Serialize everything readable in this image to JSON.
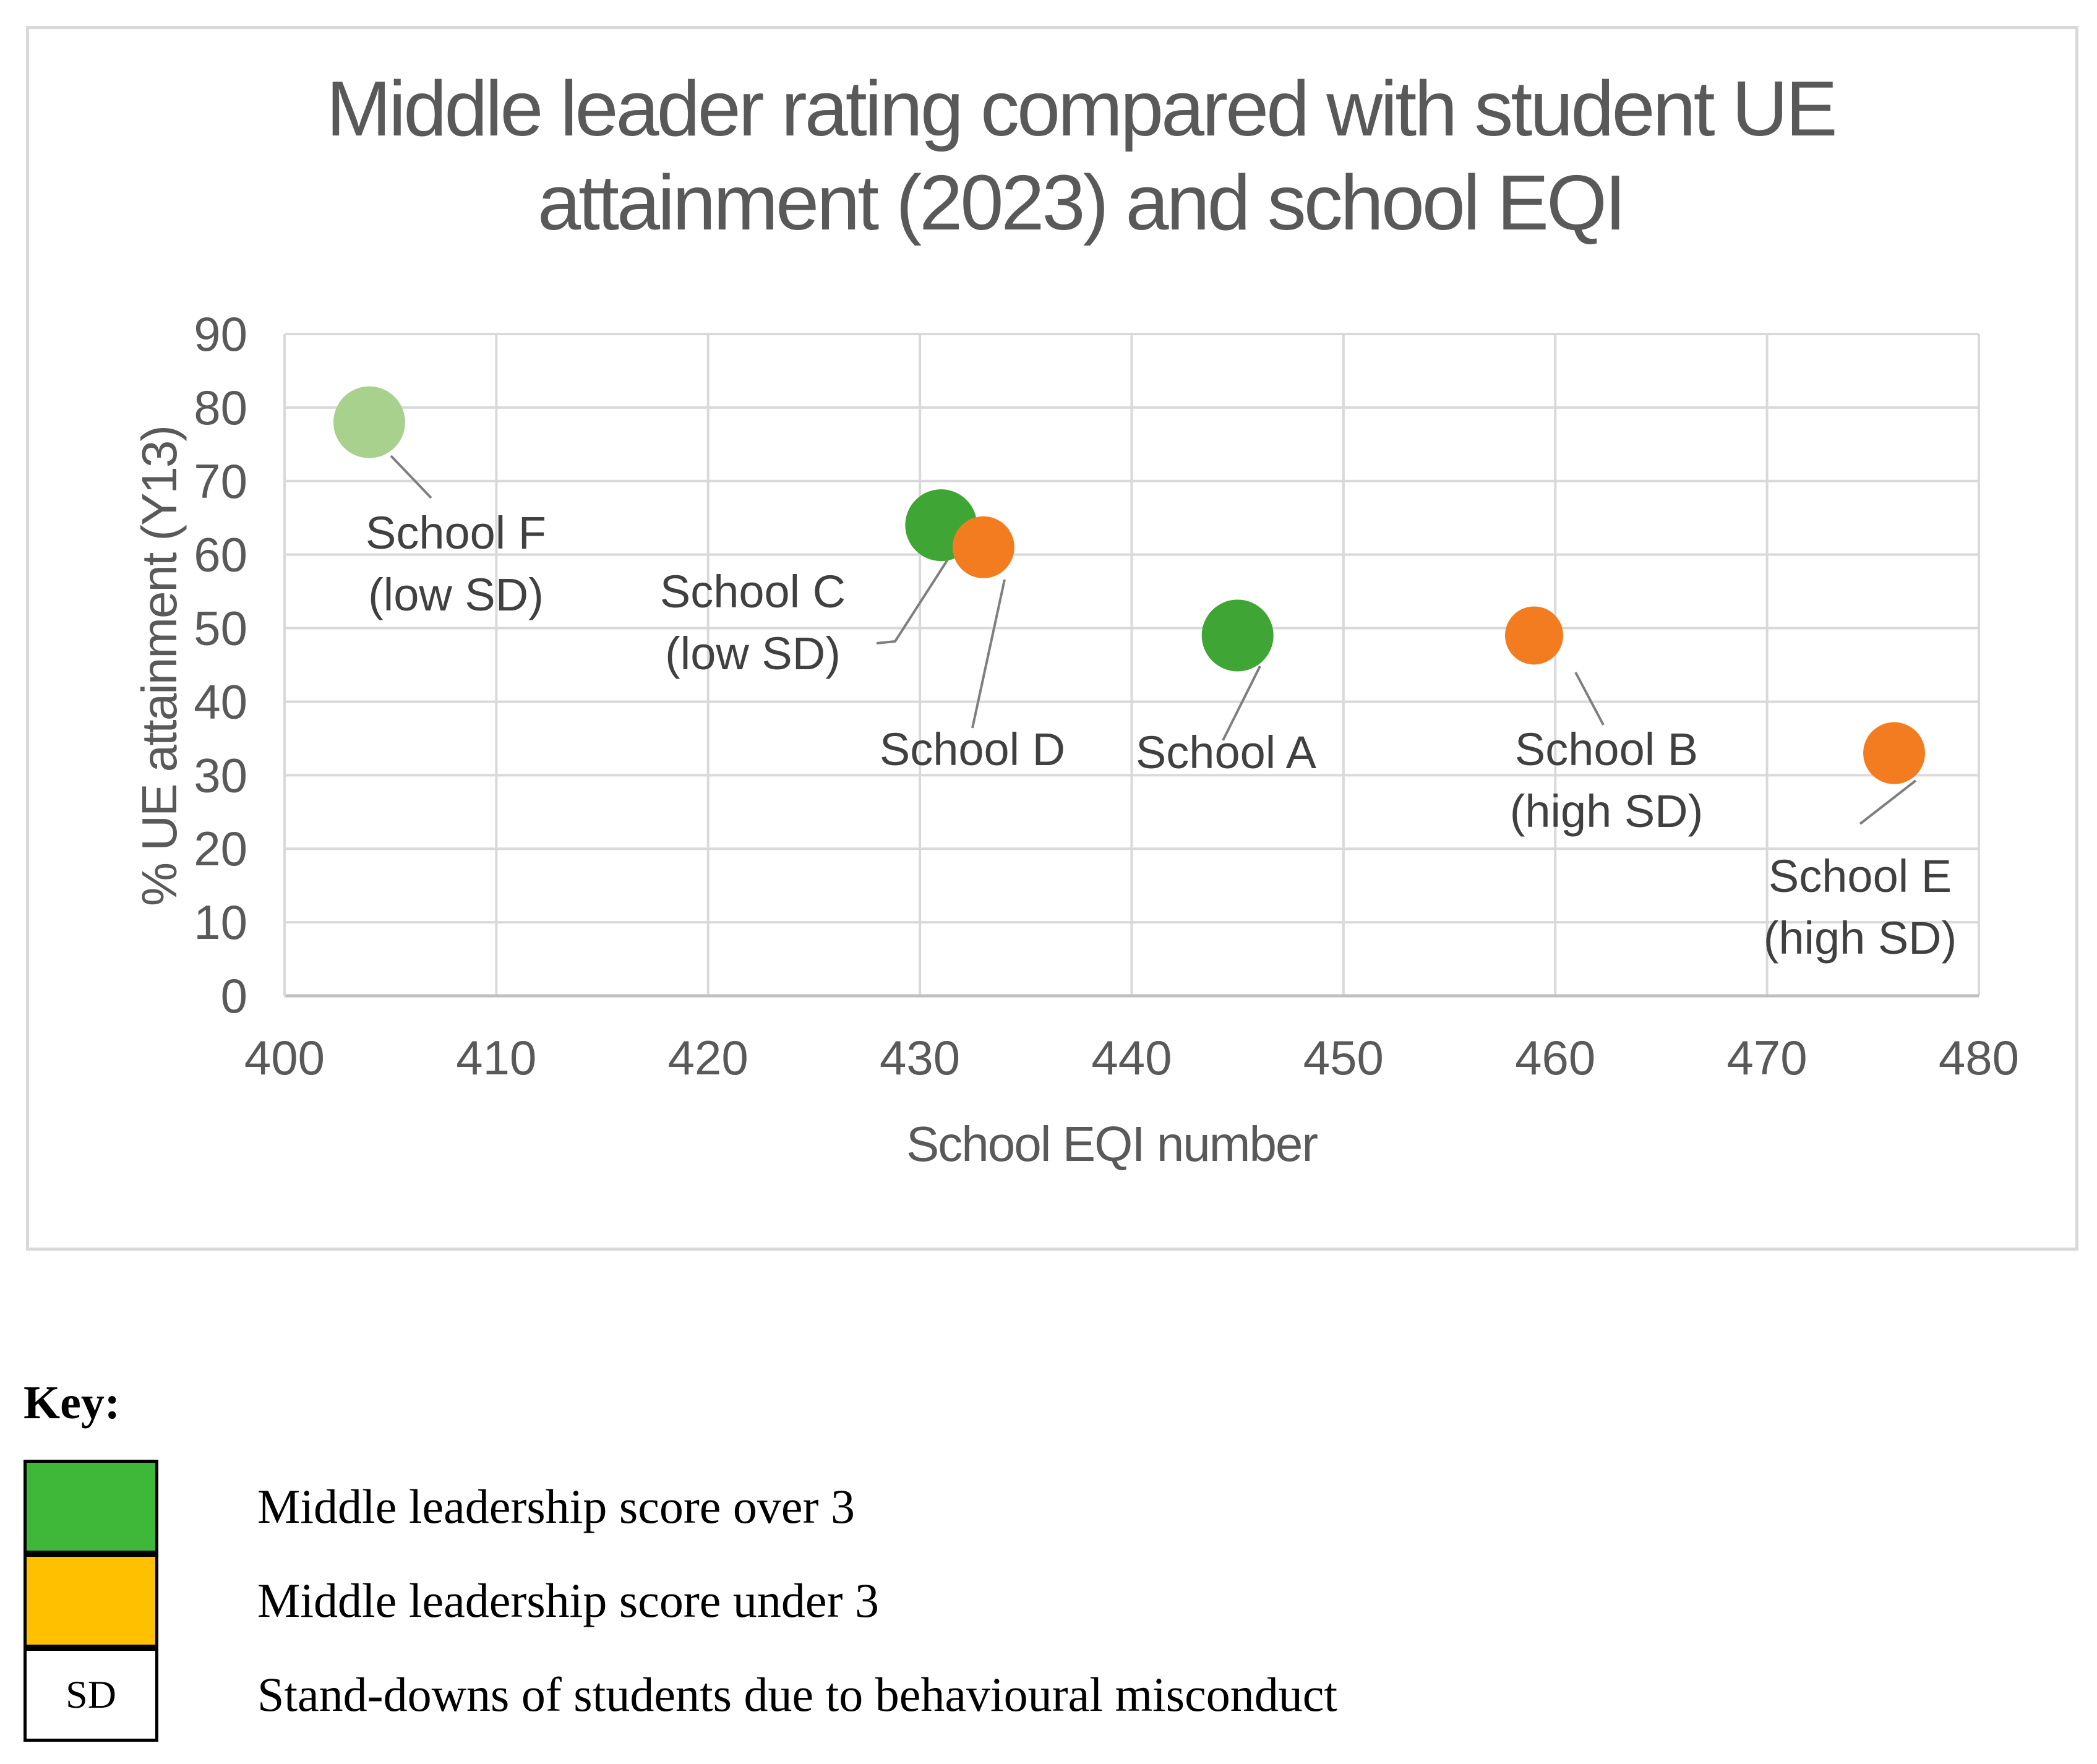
{
  "chart_data": {
    "type": "scatter",
    "title_lines": [
      "Middle leader rating compared with student UE",
      "attainment (2023) and school EQI"
    ],
    "xlabel": "School   EQI  number",
    "ylabel": "% UE attainment (Y13)",
    "xlim": [
      400,
      480
    ],
    "ylim": [
      0,
      90
    ],
    "xticks": [
      400,
      410,
      420,
      430,
      440,
      450,
      460,
      470,
      480
    ],
    "yticks": [
      0,
      10,
      20,
      30,
      40,
      50,
      60,
      70,
      80,
      90
    ],
    "grid": true,
    "points": [
      {
        "name": "School F",
        "label_lines": [
          "School F",
          "(low SD)"
        ],
        "x": 404,
        "y": 78,
        "color": "#a9d18e",
        "category": "over3",
        "size": "large"
      },
      {
        "name": "School C",
        "label_lines": [
          "School C",
          "(low SD)"
        ],
        "x": 431,
        "y": 64,
        "color": "#3fa535",
        "category": "over3",
        "size": "large"
      },
      {
        "name": "School D",
        "label_lines": [
          "School D"
        ],
        "x": 433,
        "y": 61,
        "color": "#f47c20",
        "category": "under3",
        "size": "medium"
      },
      {
        "name": "School A",
        "label_lines": [
          "School A"
        ],
        "x": 445,
        "y": 49,
        "color": "#3fa535",
        "category": "over3",
        "size": "large"
      },
      {
        "name": "School B",
        "label_lines": [
          "School B",
          "(high SD)"
        ],
        "x": 459,
        "y": 49,
        "color": "#f47c20",
        "category": "under3",
        "size": "small"
      },
      {
        "name": "School E",
        "label_lines": [
          "School E",
          "(high SD)"
        ],
        "x": 476,
        "y": 33,
        "color": "#f47c20",
        "category": "under3",
        "size": "medium"
      }
    ]
  },
  "key": {
    "title": "Key:",
    "items": [
      {
        "swatch_color": "#3fb83a",
        "swatch_text": "",
        "label": "Middle leadership score over 3"
      },
      {
        "swatch_color": "#ffc000",
        "swatch_text": "",
        "label": "Middle leadership score under 3"
      },
      {
        "swatch_color": "#ffffff",
        "swatch_text": "SD",
        "label": "Stand-downs of students due to behavioural misconduct"
      }
    ]
  }
}
